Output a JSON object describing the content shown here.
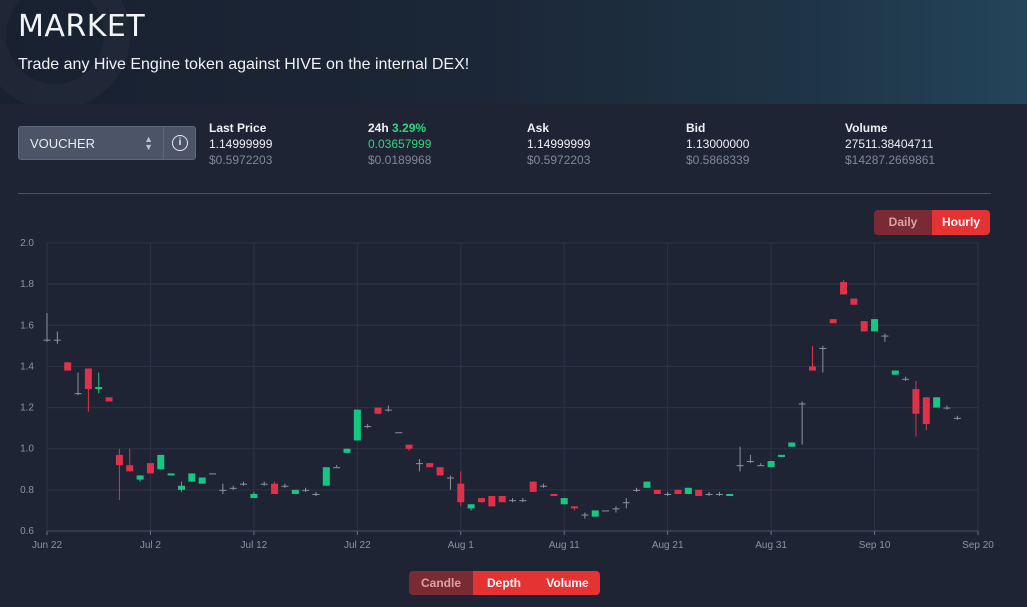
{
  "header": {
    "title": "MARKET",
    "subtitle": "Trade any Hive Engine token against HIVE on the internal DEX!"
  },
  "token_select": {
    "value": "VOUCHER",
    "chevron_icon": "chevron-updown-icon"
  },
  "info_button": {
    "icon": "info-icon",
    "glyph": "i"
  },
  "stats": {
    "last_price": {
      "label": "Last Price",
      "value": "1.14999999",
      "usd": "$0.5972203"
    },
    "change_24h": {
      "label": "24h",
      "percent": "3.29%",
      "value": "0.03657999",
      "usd": "$0.0189968",
      "color": "#2ed47a"
    },
    "ask": {
      "label": "Ask",
      "value": "1.14999999",
      "usd": "$0.5972203"
    },
    "bid": {
      "label": "Bid",
      "value": "1.13000000",
      "usd": "$0.5868339"
    },
    "volume": {
      "label": "Volume",
      "value": "27511.38404711",
      "usd": "$14287.2669861"
    }
  },
  "timeframe_buttons": [
    {
      "label": "Daily",
      "active": false
    },
    {
      "label": "Hourly",
      "active": true
    }
  ],
  "view_buttons": [
    {
      "label": "Candle",
      "active": false
    },
    {
      "label": "Depth",
      "active": true
    },
    {
      "label": "Volume",
      "active": true
    }
  ],
  "colors": {
    "up": "#16c784",
    "down": "#e0314b",
    "active_button": "#e53232",
    "inactive_button": "#7a2a33"
  },
  "chart_data": {
    "type": "candlestick",
    "title": "",
    "ylim": [
      0.6,
      2.0
    ],
    "y_ticks": [
      "0.6",
      "0.8",
      "1.0",
      "1.2",
      "1.4",
      "1.6",
      "1.8",
      "2.0"
    ],
    "x_ticks": [
      {
        "label": "Jun 22",
        "day": 0
      },
      {
        "label": "Jul 2",
        "day": 10
      },
      {
        "label": "Jul 12",
        "day": 20
      },
      {
        "label": "Jul 22",
        "day": 30
      },
      {
        "label": "Aug 1",
        "day": 40
      },
      {
        "label": "Aug 11",
        "day": 50
      },
      {
        "label": "Aug 21",
        "day": 60
      },
      {
        "label": "Aug 31",
        "day": 70
      },
      {
        "label": "Sep 10",
        "day": 80
      },
      {
        "label": "Sep 20",
        "day": 90
      }
    ],
    "grid": true,
    "candles": [
      {
        "day": 0.0,
        "open": 1.53,
        "close": 1.53,
        "high": 1.66,
        "low": 1.52
      },
      {
        "day": 1.0,
        "open": 1.53,
        "close": 1.53,
        "high": 1.57,
        "low": 1.51
      },
      {
        "day": 2.0,
        "open": 1.42,
        "close": 1.38,
        "high": 1.42,
        "low": 1.38
      },
      {
        "day": 3.0,
        "open": 1.27,
        "close": 1.27,
        "high": 1.37,
        "low": 1.26
      },
      {
        "day": 4.0,
        "open": 1.39,
        "close": 1.29,
        "high": 1.39,
        "low": 1.18
      },
      {
        "day": 5.0,
        "open": 1.29,
        "close": 1.3,
        "high": 1.37,
        "low": 1.27
      },
      {
        "day": 6.0,
        "open": 1.25,
        "close": 1.23,
        "high": 1.25,
        "low": 1.23
      },
      {
        "day": 7.0,
        "open": 0.97,
        "close": 0.92,
        "high": 1.0,
        "low": 0.75
      },
      {
        "day": 8.0,
        "open": 0.92,
        "close": 0.89,
        "high": 1.0,
        "low": 0.89
      },
      {
        "day": 9.0,
        "open": 0.85,
        "close": 0.87,
        "high": 0.87,
        "low": 0.84
      },
      {
        "day": 10.0,
        "open": 0.93,
        "close": 0.88,
        "high": 0.93,
        "low": 0.88
      },
      {
        "day": 11.0,
        "open": 0.9,
        "close": 0.97,
        "high": 0.97,
        "low": 0.9
      },
      {
        "day": 12.0,
        "open": 0.87,
        "close": 0.88,
        "high": 0.88,
        "low": 0.87
      },
      {
        "day": 13.0,
        "open": 0.8,
        "close": 0.82,
        "high": 0.84,
        "low": 0.79
      },
      {
        "day": 14.0,
        "open": 0.84,
        "close": 0.88,
        "high": 0.88,
        "low": 0.84
      },
      {
        "day": 15.0,
        "open": 0.83,
        "close": 0.86,
        "high": 0.86,
        "low": 0.83
      },
      {
        "day": 16.0,
        "open": 0.88,
        "close": 0.88,
        "high": 0.88,
        "low": 0.88
      },
      {
        "day": 17.0,
        "open": 0.8,
        "close": 0.8,
        "high": 0.83,
        "low": 0.78
      },
      {
        "day": 18.0,
        "open": 0.81,
        "close": 0.81,
        "high": 0.82,
        "low": 0.8
      },
      {
        "day": 19.0,
        "open": 0.83,
        "close": 0.83,
        "high": 0.84,
        "low": 0.82
      },
      {
        "day": 20.0,
        "open": 0.76,
        "close": 0.78,
        "high": 0.79,
        "low": 0.76
      },
      {
        "day": 21.0,
        "open": 0.83,
        "close": 0.83,
        "high": 0.84,
        "low": 0.82
      },
      {
        "day": 22.0,
        "open": 0.83,
        "close": 0.78,
        "high": 0.84,
        "low": 0.78
      },
      {
        "day": 23.0,
        "open": 0.82,
        "close": 0.82,
        "high": 0.83,
        "low": 0.81
      },
      {
        "day": 24.0,
        "open": 0.78,
        "close": 0.8,
        "high": 0.8,
        "low": 0.78
      },
      {
        "day": 25.0,
        "open": 0.8,
        "close": 0.8,
        "high": 0.81,
        "low": 0.79
      },
      {
        "day": 26.0,
        "open": 0.78,
        "close": 0.78,
        "high": 0.79,
        "low": 0.77
      },
      {
        "day": 27.0,
        "open": 0.82,
        "close": 0.91,
        "high": 0.91,
        "low": 0.82
      },
      {
        "day": 28.0,
        "open": 0.91,
        "close": 0.91,
        "high": 0.92,
        "low": 0.91
      },
      {
        "day": 29.0,
        "open": 0.98,
        "close": 1.0,
        "high": 1.0,
        "low": 0.98
      },
      {
        "day": 30.0,
        "open": 1.04,
        "close": 1.19,
        "high": 1.19,
        "low": 1.04
      },
      {
        "day": 31.0,
        "open": 1.11,
        "close": 1.11,
        "high": 1.12,
        "low": 1.1
      },
      {
        "day": 32.0,
        "open": 1.2,
        "close": 1.17,
        "high": 1.2,
        "low": 1.17
      },
      {
        "day": 33.0,
        "open": 1.19,
        "close": 1.19,
        "high": 1.21,
        "low": 1.18
      },
      {
        "day": 34.0,
        "open": 1.08,
        "close": 1.08,
        "high": 1.08,
        "low": 1.08
      },
      {
        "day": 35.0,
        "open": 1.02,
        "close": 1.0,
        "high": 1.02,
        "low": 0.99
      },
      {
        "day": 36.0,
        "open": 0.93,
        "close": 0.93,
        "high": 0.95,
        "low": 0.89
      },
      {
        "day": 37.0,
        "open": 0.93,
        "close": 0.91,
        "high": 0.93,
        "low": 0.91
      },
      {
        "day": 38.0,
        "open": 0.91,
        "close": 0.87,
        "high": 0.91,
        "low": 0.87
      },
      {
        "day": 39.0,
        "open": 0.86,
        "close": 0.86,
        "high": 0.87,
        "low": 0.8
      },
      {
        "day": 40.0,
        "open": 0.83,
        "close": 0.74,
        "high": 0.89,
        "low": 0.72
      },
      {
        "day": 41.0,
        "open": 0.71,
        "close": 0.73,
        "high": 0.73,
        "low": 0.7
      },
      {
        "day": 42.0,
        "open": 0.76,
        "close": 0.74,
        "high": 0.76,
        "low": 0.74
      },
      {
        "day": 43.0,
        "open": 0.77,
        "close": 0.72,
        "high": 0.77,
        "low": 0.72
      },
      {
        "day": 44.0,
        "open": 0.77,
        "close": 0.74,
        "high": 0.77,
        "low": 0.74
      },
      {
        "day": 45.0,
        "open": 0.75,
        "close": 0.75,
        "high": 0.76,
        "low": 0.74
      },
      {
        "day": 46.0,
        "open": 0.75,
        "close": 0.75,
        "high": 0.76,
        "low": 0.74
      },
      {
        "day": 47.0,
        "open": 0.84,
        "close": 0.79,
        "high": 0.84,
        "low": 0.79
      },
      {
        "day": 48.0,
        "open": 0.82,
        "close": 0.82,
        "high": 0.83,
        "low": 0.81
      },
      {
        "day": 49.0,
        "open": 0.78,
        "close": 0.77,
        "high": 0.78,
        "low": 0.77
      },
      {
        "day": 50.0,
        "open": 0.73,
        "close": 0.76,
        "high": 0.76,
        "low": 0.73
      },
      {
        "day": 51.0,
        "open": 0.72,
        "close": 0.71,
        "high": 0.72,
        "low": 0.7
      },
      {
        "day": 52.0,
        "open": 0.68,
        "close": 0.68,
        "high": 0.69,
        "low": 0.66
      },
      {
        "day": 53.0,
        "open": 0.67,
        "close": 0.7,
        "high": 0.7,
        "low": 0.67
      },
      {
        "day": 54.0,
        "open": 0.7,
        "close": 0.7,
        "high": 0.7,
        "low": 0.7
      },
      {
        "day": 55.0,
        "open": 0.71,
        "close": 0.71,
        "high": 0.72,
        "low": 0.69
      },
      {
        "day": 56.0,
        "open": 0.74,
        "close": 0.74,
        "high": 0.76,
        "low": 0.71
      },
      {
        "day": 57.0,
        "open": 0.8,
        "close": 0.8,
        "high": 0.81,
        "low": 0.79
      },
      {
        "day": 58.0,
        "open": 0.81,
        "close": 0.84,
        "high": 0.84,
        "low": 0.81
      },
      {
        "day": 59.0,
        "open": 0.8,
        "close": 0.78,
        "high": 0.8,
        "low": 0.78
      },
      {
        "day": 60.0,
        "open": 0.78,
        "close": 0.78,
        "high": 0.79,
        "low": 0.77
      },
      {
        "day": 61.0,
        "open": 0.8,
        "close": 0.78,
        "high": 0.8,
        "low": 0.78
      },
      {
        "day": 62.0,
        "open": 0.78,
        "close": 0.81,
        "high": 0.81,
        "low": 0.78
      },
      {
        "day": 63.0,
        "open": 0.8,
        "close": 0.77,
        "high": 0.8,
        "low": 0.77
      },
      {
        "day": 64.0,
        "open": 0.78,
        "close": 0.78,
        "high": 0.79,
        "low": 0.77
      },
      {
        "day": 65.0,
        "open": 0.78,
        "close": 0.78,
        "high": 0.79,
        "low": 0.77
      },
      {
        "day": 66.0,
        "open": 0.77,
        "close": 0.78,
        "high": 0.78,
        "low": 0.77
      },
      {
        "day": 67.0,
        "open": 0.92,
        "close": 0.92,
        "high": 1.01,
        "low": 0.89
      },
      {
        "day": 68.0,
        "open": 0.94,
        "close": 0.94,
        "high": 0.97,
        "low": 0.93
      },
      {
        "day": 69.0,
        "open": 0.92,
        "close": 0.92,
        "high": 0.93,
        "low": 0.92
      },
      {
        "day": 70.0,
        "open": 0.91,
        "close": 0.94,
        "high": 0.94,
        "low": 0.91
      },
      {
        "day": 71.0,
        "open": 0.96,
        "close": 0.97,
        "high": 0.97,
        "low": 0.96
      },
      {
        "day": 72.0,
        "open": 1.01,
        "close": 1.03,
        "high": 1.03,
        "low": 1.01
      },
      {
        "day": 73.0,
        "open": 1.22,
        "close": 1.22,
        "high": 1.23,
        "low": 1.02
      },
      {
        "day": 74.0,
        "open": 1.4,
        "close": 1.38,
        "high": 1.5,
        "low": 1.38
      },
      {
        "day": 75.0,
        "open": 1.49,
        "close": 1.49,
        "high": 1.5,
        "low": 1.37
      },
      {
        "day": 76.0,
        "open": 1.63,
        "close": 1.61,
        "high": 1.63,
        "low": 1.61
      },
      {
        "day": 77.0,
        "open": 1.81,
        "close": 1.75,
        "high": 1.82,
        "low": 1.75
      },
      {
        "day": 78.0,
        "open": 1.73,
        "close": 1.7,
        "high": 1.73,
        "low": 1.7
      },
      {
        "day": 79.0,
        "open": 1.62,
        "close": 1.57,
        "high": 1.62,
        "low": 1.57
      },
      {
        "day": 80.0,
        "open": 1.57,
        "close": 1.63,
        "high": 1.63,
        "low": 1.57
      },
      {
        "day": 81.0,
        "open": 1.55,
        "close": 1.55,
        "high": 1.56,
        "low": 1.52
      },
      {
        "day": 82.0,
        "open": 1.36,
        "close": 1.38,
        "high": 1.38,
        "low": 1.36
      },
      {
        "day": 83.0,
        "open": 1.34,
        "close": 1.34,
        "high": 1.35,
        "low": 1.33
      },
      {
        "day": 84.0,
        "open": 1.29,
        "close": 1.17,
        "high": 1.33,
        "low": 1.06
      },
      {
        "day": 85.0,
        "open": 1.25,
        "close": 1.12,
        "high": 1.25,
        "low": 1.09
      },
      {
        "day": 86.0,
        "open": 1.2,
        "close": 1.25,
        "high": 1.25,
        "low": 1.2
      },
      {
        "day": 87.0,
        "open": 1.2,
        "close": 1.2,
        "high": 1.21,
        "low": 1.19
      },
      {
        "day": 88.0,
        "open": 1.15,
        "close": 1.15,
        "high": 1.16,
        "low": 1.14
      }
    ]
  }
}
